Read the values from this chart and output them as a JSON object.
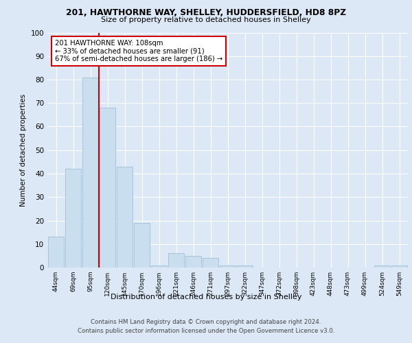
{
  "title1": "201, HAWTHORNE WAY, SHELLEY, HUDDERSFIELD, HD8 8PZ",
  "title2": "Size of property relative to detached houses in Shelley",
  "xlabel": "Distribution of detached houses by size in Shelley",
  "ylabel": "Number of detached properties",
  "bar_color": "#c9dff0",
  "bar_edge_color": "#a0bfd8",
  "categories": [
    "44sqm",
    "69sqm",
    "95sqm",
    "120sqm",
    "145sqm",
    "170sqm",
    "196sqm",
    "221sqm",
    "246sqm",
    "271sqm",
    "297sqm",
    "322sqm",
    "347sqm",
    "372sqm",
    "398sqm",
    "423sqm",
    "448sqm",
    "473sqm",
    "499sqm",
    "524sqm",
    "549sqm"
  ],
  "values": [
    13,
    42,
    81,
    68,
    43,
    19,
    1,
    6,
    5,
    4,
    1,
    1,
    0,
    0,
    0,
    0,
    0,
    0,
    0,
    1,
    1
  ],
  "vline_x": 2.5,
  "annotation_text": "201 HAWTHORNE WAY: 108sqm\n← 33% of detached houses are smaller (91)\n67% of semi-detached houses are larger (186) →",
  "annotation_box_color": "#ffffff",
  "annotation_box_edge": "#cc0000",
  "vline_color": "#cc0000",
  "ylim": [
    0,
    100
  ],
  "yticks": [
    0,
    10,
    20,
    30,
    40,
    50,
    60,
    70,
    80,
    90,
    100
  ],
  "footer_line1": "Contains HM Land Registry data © Crown copyright and database right 2024.",
  "footer_line2": "Contains public sector information licensed under the Open Government Licence v3.0.",
  "fig_bg_color": "#dce8f5",
  "plot_bg_color": "#dce8f5"
}
